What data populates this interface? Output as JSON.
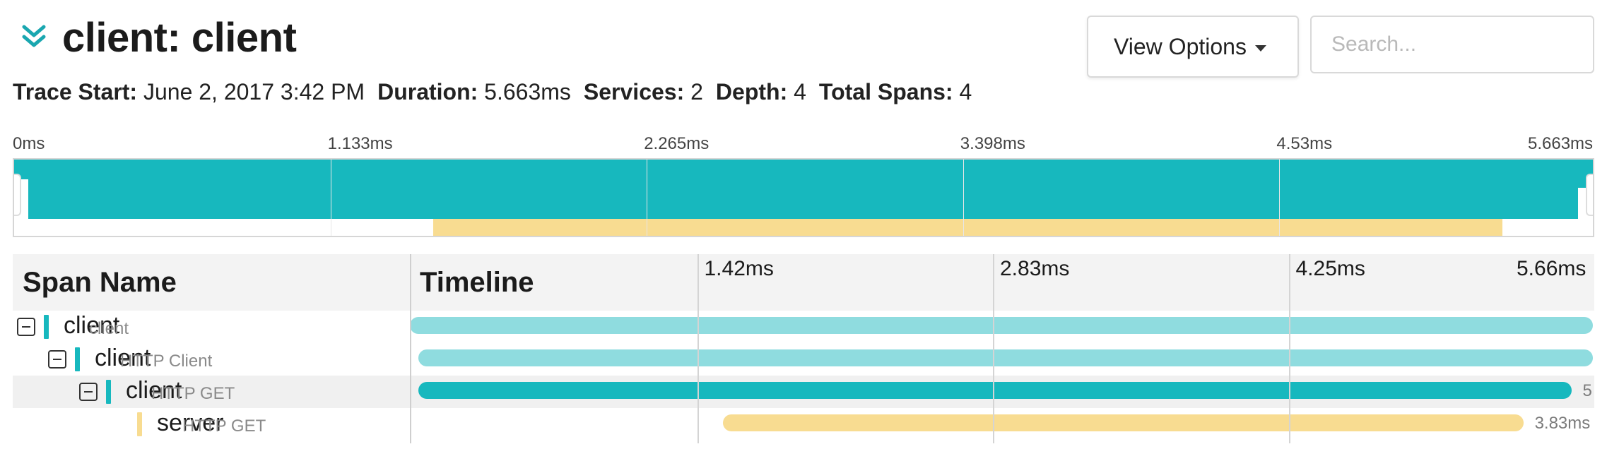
{
  "trace": {
    "title": "client: client",
    "meta": [
      {
        "label": "Trace Start:",
        "value": "June 2, 2017 3:42 PM"
      },
      {
        "label": "Duration:",
        "value": "5.663ms"
      },
      {
        "label": "Services:",
        "value": "2"
      },
      {
        "label": "Depth:",
        "value": "4"
      },
      {
        "label": "Total Spans:",
        "value": "4"
      }
    ]
  },
  "toolbar": {
    "view_options_label": "View Options",
    "search_placeholder": "Search..."
  },
  "icons": {
    "collapse": "double-chevron-down-icon",
    "view_options_caret": "caret-down-icon",
    "row_toggle": "minus-square-icon"
  },
  "colors": {
    "accent": "#1aa7b0",
    "client": "#17b8be",
    "client_light": "#8fdcdf",
    "server": "#f8dc91",
    "header_bg": "#f3f3f3"
  },
  "minimap": {
    "ticks": [
      "0ms",
      "1.133ms",
      "2.265ms",
      "3.398ms",
      "4.53ms",
      "5.663ms"
    ],
    "total_ms": 5.663,
    "bars": [
      {
        "start_ms": 0.0,
        "end_ms": 5.663,
        "color": "#17b8be",
        "row": 0
      },
      {
        "start_ms": 0.05,
        "end_ms": 5.663,
        "color": "#17b8be",
        "row": 1
      },
      {
        "start_ms": 0.05,
        "end_ms": 5.6,
        "color": "#17b8be",
        "row": 2
      },
      {
        "start_ms": 1.5,
        "end_ms": 5.33,
        "color": "#f8dc91",
        "row": 3
      }
    ]
  },
  "table": {
    "span_name_header": "Span Name",
    "timeline_header": "Timeline",
    "timeline_total_ms": 5.663,
    "timeline_ticks": [
      "1.42ms",
      "2.83ms",
      "4.25ms",
      "5.66ms"
    ],
    "spans": [
      {
        "service": "client",
        "operation": "client",
        "depth": 0,
        "has_children": true,
        "start_ms": 0.0,
        "end_ms": 5.663,
        "color": "#8fdcdf",
        "marker": "#17b8be",
        "highlight": false,
        "duration_label": ""
      },
      {
        "service": "client",
        "operation": "HTTP Client",
        "depth": 1,
        "has_children": true,
        "start_ms": 0.04,
        "end_ms": 5.663,
        "color": "#8fdcdf",
        "marker": "#17b8be",
        "highlight": false,
        "duration_label": ""
      },
      {
        "service": "client",
        "operation": "HTTP GET",
        "depth": 2,
        "has_children": true,
        "start_ms": 0.04,
        "end_ms": 5.56,
        "color": "#17b8be",
        "marker": "#17b8be",
        "highlight": true,
        "duration_label": "5"
      },
      {
        "service": "server",
        "operation": "HTTP GET",
        "depth": 3,
        "has_children": false,
        "start_ms": 1.5,
        "end_ms": 5.33,
        "color": "#f8dc91",
        "marker": "#f8dc91",
        "highlight": false,
        "duration_label": "3.83ms"
      }
    ]
  }
}
